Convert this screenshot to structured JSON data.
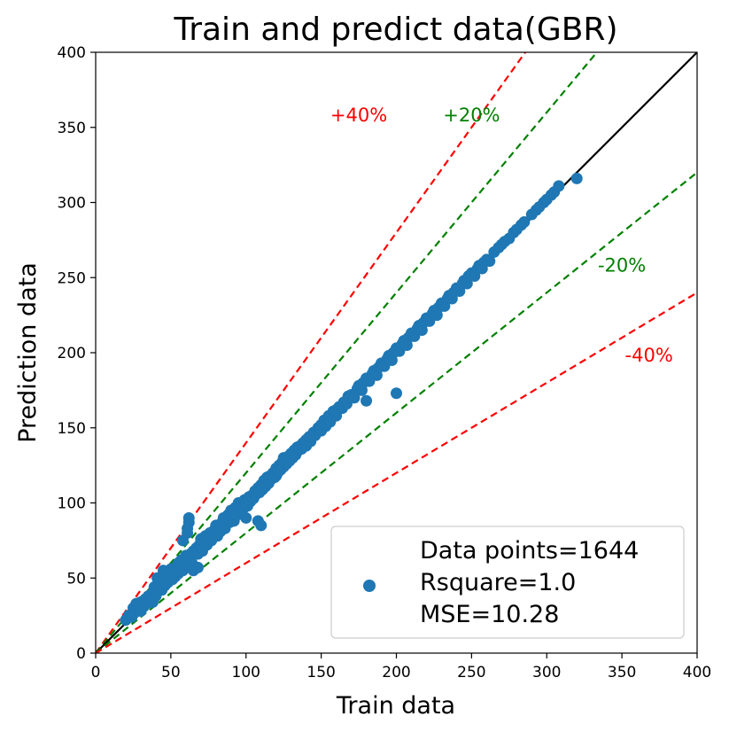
{
  "chart_data": {
    "type": "scatter",
    "title": "Train and predict data(GBR)",
    "xlabel": "Train data",
    "ylabel": "Prediction data",
    "xlim": [
      0,
      400
    ],
    "ylim": [
      0,
      400
    ],
    "xticks": [
      0,
      50,
      100,
      150,
      200,
      250,
      300,
      350,
      400
    ],
    "yticks": [
      0,
      50,
      100,
      150,
      200,
      250,
      300,
      350,
      400
    ],
    "grid": false,
    "legend": {
      "placement": "lower-right",
      "lines": [
        "Data points=1644",
        "Rsquare=1.0",
        "MSE=10.28"
      ]
    },
    "reference_lines": [
      {
        "label": "+40%",
        "slope": 1.4,
        "color": "#ff0000",
        "style": "dashed"
      },
      {
        "label": "+20%",
        "slope": 1.2,
        "color": "#008000",
        "style": "dashed"
      },
      {
        "label": "",
        "slope": 1.0,
        "color": "#000000",
        "style": "solid"
      },
      {
        "label": "-20%",
        "slope": 0.8,
        "color": "#008000",
        "style": "dashed"
      },
      {
        "label": "-40%",
        "slope": 0.6,
        "color": "#ff0000",
        "style": "dashed"
      }
    ],
    "annotations": [
      {
        "text": "+40%",
        "x": 175,
        "y": 354,
        "color": "#ff0000"
      },
      {
        "text": "+20%",
        "x": 250,
        "y": 354,
        "color": "#008000"
      },
      {
        "text": "-20%",
        "x": 350,
        "y": 254,
        "color": "#008000"
      },
      {
        "text": "-40%",
        "x": 368,
        "y": 194,
        "color": "#ff0000"
      }
    ],
    "series": [
      {
        "color": "#1f77b4",
        "points": [
          [
            20,
            22
          ],
          [
            22,
            25
          ],
          [
            24,
            24
          ],
          [
            25,
            30
          ],
          [
            26,
            27
          ],
          [
            27,
            33
          ],
          [
            28,
            29
          ],
          [
            30,
            28
          ],
          [
            30,
            34
          ],
          [
            32,
            31
          ],
          [
            33,
            36
          ],
          [
            34,
            33
          ],
          [
            35,
            38
          ],
          [
            36,
            35
          ],
          [
            37,
            36
          ],
          [
            38,
            40
          ],
          [
            38,
            34
          ],
          [
            39,
            44
          ],
          [
            40,
            41
          ],
          [
            40,
            38
          ],
          [
            41,
            50
          ],
          [
            42,
            43
          ],
          [
            43,
            46
          ],
          [
            44,
            42
          ],
          [
            45,
            48
          ],
          [
            45,
            55
          ],
          [
            46,
            45
          ],
          [
            47,
            50
          ],
          [
            48,
            47
          ],
          [
            49,
            52
          ],
          [
            50,
            50
          ],
          [
            50,
            56
          ],
          [
            51,
            49
          ],
          [
            52,
            54
          ],
          [
            53,
            51
          ],
          [
            54,
            58
          ],
          [
            55,
            53
          ],
          [
            55,
            60
          ],
          [
            56,
            56
          ],
          [
            57,
            62
          ],
          [
            58,
            55
          ],
          [
            58,
            75
          ],
          [
            59,
            59
          ],
          [
            60,
            65
          ],
          [
            60,
            58
          ],
          [
            61,
            80
          ],
          [
            61,
            83
          ],
          [
            62,
            87
          ],
          [
            62,
            90
          ],
          [
            62,
            62
          ],
          [
            63,
            66
          ],
          [
            64,
            60
          ],
          [
            65,
            68
          ],
          [
            65,
            55
          ],
          [
            66,
            67
          ],
          [
            67,
            70
          ],
          [
            68,
            66
          ],
          [
            68,
            57
          ],
          [
            69,
            72
          ],
          [
            70,
            70
          ],
          [
            70,
            76
          ],
          [
            71,
            68
          ],
          [
            72,
            74
          ],
          [
            73,
            78
          ],
          [
            74,
            72
          ],
          [
            75,
            77
          ],
          [
            76,
            80
          ],
          [
            77,
            75
          ],
          [
            78,
            79
          ],
          [
            79,
            82
          ],
          [
            80,
            80
          ],
          [
            80,
            85
          ],
          [
            81,
            78
          ],
          [
            82,
            84
          ],
          [
            83,
            81
          ],
          [
            84,
            87
          ],
          [
            85,
            85
          ],
          [
            85,
            90
          ],
          [
            86,
            83
          ],
          [
            87,
            88
          ],
          [
            88,
            92
          ],
          [
            89,
            87
          ],
          [
            90,
            95
          ],
          [
            90,
            89
          ],
          [
            91,
            93
          ],
          [
            92,
            88
          ],
          [
            93,
            97
          ],
          [
            94,
            92
          ],
          [
            95,
            96
          ],
          [
            95,
            100
          ],
          [
            96,
            94
          ],
          [
            97,
            99
          ],
          [
            98,
            96
          ],
          [
            99,
            102
          ],
          [
            100,
            100
          ],
          [
            100,
            90
          ],
          [
            101,
            98
          ],
          [
            102,
            104
          ],
          [
            103,
            101
          ],
          [
            104,
            105
          ],
          [
            105,
            103
          ],
          [
            106,
            108
          ],
          [
            107,
            106
          ],
          [
            108,
            110
          ],
          [
            108,
            88
          ],
          [
            109,
            107
          ],
          [
            110,
            112
          ],
          [
            110,
            85
          ],
          [
            111,
            109
          ],
          [
            112,
            115
          ],
          [
            113,
            111
          ],
          [
            114,
            117
          ],
          [
            115,
            113
          ],
          [
            116,
            118
          ],
          [
            117,
            116
          ],
          [
            118,
            120
          ],
          [
            119,
            117
          ],
          [
            120,
            123
          ],
          [
            120,
            118
          ],
          [
            121,
            120
          ],
          [
            122,
            125
          ],
          [
            123,
            122
          ],
          [
            124,
            127
          ],
          [
            125,
            124
          ],
          [
            125,
            130
          ],
          [
            126,
            129
          ],
          [
            127,
            126
          ],
          [
            128,
            131
          ],
          [
            129,
            128
          ],
          [
            130,
            133
          ],
          [
            131,
            130
          ],
          [
            132,
            135
          ],
          [
            133,
            132
          ],
          [
            134,
            137
          ],
          [
            135,
            135
          ],
          [
            136,
            138
          ],
          [
            137,
            136
          ],
          [
            138,
            140
          ],
          [
            140,
            142
          ],
          [
            140,
            138
          ],
          [
            142,
            144
          ],
          [
            143,
            141
          ],
          [
            145,
            147
          ],
          [
            146,
            145
          ],
          [
            148,
            150
          ],
          [
            150,
            152
          ],
          [
            150,
            148
          ],
          [
            152,
            155
          ],
          [
            153,
            151
          ],
          [
            155,
            158
          ],
          [
            156,
            154
          ],
          [
            158,
            161
          ],
          [
            160,
            162
          ],
          [
            160,
            158
          ],
          [
            162,
            164
          ],
          [
            164,
            163
          ],
          [
            165,
            167
          ],
          [
            167,
            166
          ],
          [
            168,
            171
          ],
          [
            170,
            172
          ],
          [
            172,
            170
          ],
          [
            174,
            176
          ],
          [
            175,
            178
          ],
          [
            177,
            175
          ],
          [
            178,
            180
          ],
          [
            180,
            183
          ],
          [
            180,
            168
          ],
          [
            182,
            181
          ],
          [
            184,
            186
          ],
          [
            185,
            188
          ],
          [
            187,
            185
          ],
          [
            188,
            190
          ],
          [
            190,
            193
          ],
          [
            192,
            191
          ],
          [
            194,
            196
          ],
          [
            195,
            198
          ],
          [
            197,
            195
          ],
          [
            198,
            200
          ],
          [
            200,
            203
          ],
          [
            200,
            173
          ],
          [
            202,
            201
          ],
          [
            204,
            206
          ],
          [
            205,
            208
          ],
          [
            207,
            205
          ],
          [
            208,
            210
          ],
          [
            210,
            213
          ],
          [
            212,
            211
          ],
          [
            214,
            216
          ],
          [
            215,
            218
          ],
          [
            217,
            215
          ],
          [
            218,
            220
          ],
          [
            220,
            223
          ],
          [
            222,
            221
          ],
          [
            224,
            226
          ],
          [
            225,
            228
          ],
          [
            227,
            225
          ],
          [
            228,
            230
          ],
          [
            230,
            233
          ],
          [
            232,
            231
          ],
          [
            234,
            236
          ],
          [
            235,
            238
          ],
          [
            237,
            236
          ],
          [
            238,
            240
          ],
          [
            240,
            243
          ],
          [
            242,
            241
          ],
          [
            244,
            246
          ],
          [
            245,
            248
          ],
          [
            247,
            246
          ],
          [
            248,
            251
          ],
          [
            250,
            253
          ],
          [
            252,
            251
          ],
          [
            254,
            256
          ],
          [
            255,
            258
          ],
          [
            257,
            256
          ],
          [
            258,
            260
          ],
          [
            260,
            262
          ],
          [
            262,
            261
          ],
          [
            265,
            267
          ],
          [
            268,
            270
          ],
          [
            270,
            272
          ],
          [
            272,
            274
          ],
          [
            275,
            276
          ],
          [
            278,
            280
          ],
          [
            280,
            282
          ],
          [
            283,
            285
          ],
          [
            285,
            287
          ],
          [
            290,
            292
          ],
          [
            293,
            295
          ],
          [
            295,
            297
          ],
          [
            298,
            300
          ],
          [
            300,
            302
          ],
          [
            303,
            305
          ],
          [
            305,
            307
          ],
          [
            308,
            311
          ],
          [
            320,
            316
          ]
        ]
      }
    ]
  }
}
